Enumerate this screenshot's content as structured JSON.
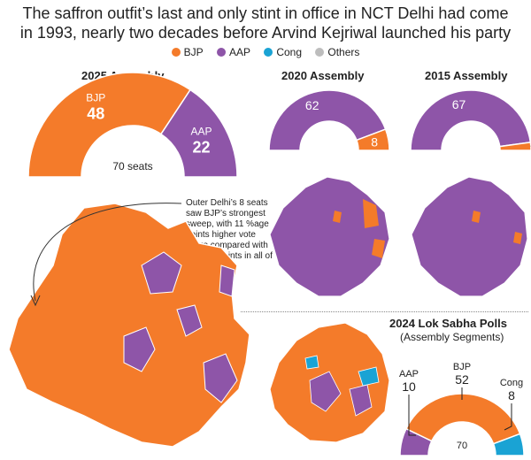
{
  "headline": {
    "line1": "The saffron outfit’s last and only stint in office in NCT Delhi had come",
    "line2": "in 1993, nearly two decades before Arvind Kejriwal launched his party"
  },
  "legend": [
    {
      "label": "BJP",
      "color": "#f47b2a"
    },
    {
      "label": "AAP",
      "color": "#8e55a8"
    },
    {
      "label": "Cong",
      "color": "#1aa3d4"
    },
    {
      "label": "Others",
      "color": "#bdbdbd"
    }
  ],
  "annotation": "Outer Delhi’s 8 seats saw BJP’s strongest sweep, with 11 %age points higher vote share compared with 2 %age points in all of Delhi",
  "chart_data": [
    {
      "type": "pie",
      "title": "2025 Assembly",
      "total_label": "70 seats",
      "series": [
        {
          "name": "BJP",
          "value": 48,
          "color": "#f47b2a"
        },
        {
          "name": "AAP",
          "value": 22,
          "color": "#8e55a8"
        }
      ]
    },
    {
      "type": "pie",
      "title": "2020 Assembly",
      "series": [
        {
          "name": "AAP",
          "value": 62,
          "color": "#8e55a8"
        },
        {
          "name": "BJP",
          "value": 8,
          "color": "#f47b2a"
        }
      ]
    },
    {
      "type": "pie",
      "title": "2015 Assembly",
      "series": [
        {
          "name": "AAP",
          "value": 67,
          "color": "#8e55a8"
        },
        {
          "name": "BJP",
          "value": 3,
          "color": "#f47b2a"
        }
      ]
    },
    {
      "type": "pie",
      "title": "2024 Lok Sabha Polls",
      "subtitle": "(Assembly Segments)",
      "total_label": "70",
      "series": [
        {
          "name": "AAP",
          "value": 10,
          "color": "#8e55a8"
        },
        {
          "name": "BJP",
          "value": 52,
          "color": "#f47b2a"
        },
        {
          "name": "Cong",
          "value": 8,
          "color": "#1aa3d4"
        }
      ]
    }
  ]
}
